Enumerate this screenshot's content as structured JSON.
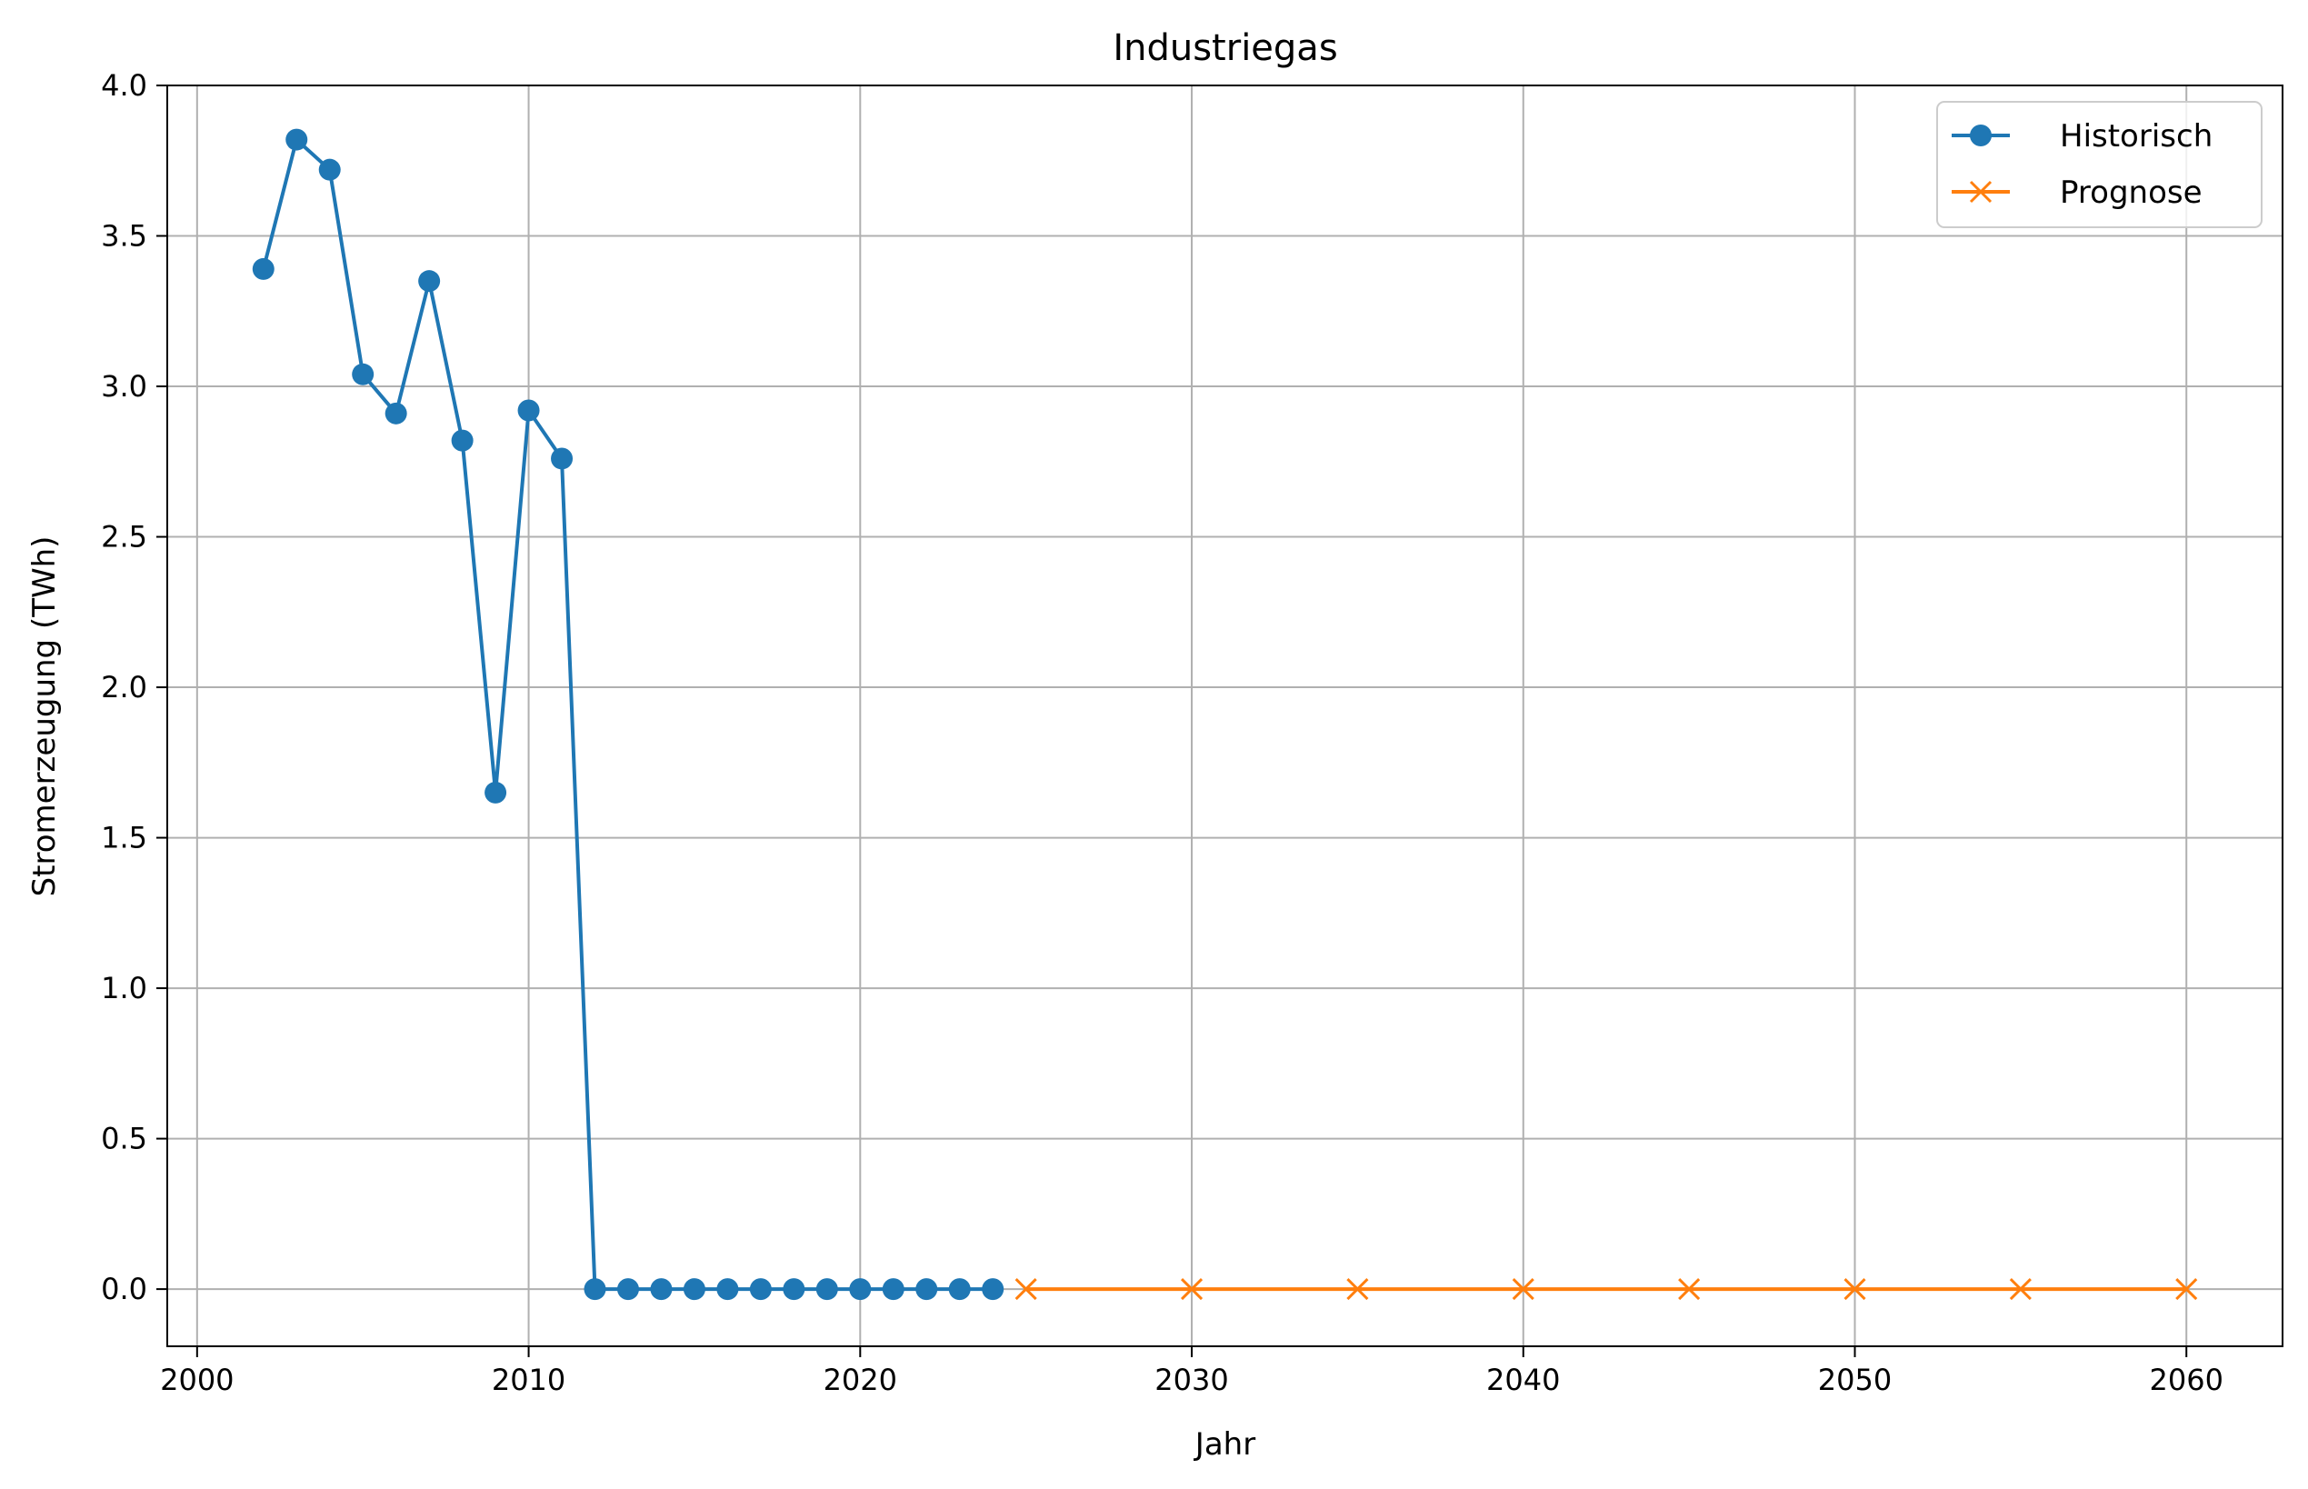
{
  "chart_data": {
    "type": "line",
    "title": "Industriegas",
    "xlabel": "Jahr",
    "ylabel": "Stromerzeugung (TWh)",
    "xlim": [
      1999.1,
      2062.9
    ],
    "ylim": [
      -0.19,
      4.0
    ],
    "x_ticks": [
      2000,
      2010,
      2020,
      2030,
      2040,
      2050,
      2060
    ],
    "x_tick_labels": [
      "2000",
      "2010",
      "2020",
      "2030",
      "2040",
      "2050",
      "2060"
    ],
    "y_ticks": [
      0.0,
      0.5,
      1.0,
      1.5,
      2.0,
      2.5,
      3.0,
      3.5,
      4.0
    ],
    "y_tick_labels": [
      "0.0",
      "0.5",
      "1.0",
      "1.5",
      "2.0",
      "2.5",
      "3.0",
      "3.5",
      "4.0"
    ],
    "grid": true,
    "legend_position": "top-right",
    "series": [
      {
        "name": "Historisch",
        "color": "#1f77b4",
        "marker": "circle",
        "x": [
          2002,
          2003,
          2004,
          2005,
          2006,
          2007,
          2008,
          2009,
          2010,
          2011,
          2012,
          2013,
          2014,
          2015,
          2016,
          2017,
          2018,
          2019,
          2020,
          2021,
          2022,
          2023,
          2024
        ],
        "values": [
          3.39,
          3.82,
          3.72,
          3.04,
          2.91,
          3.35,
          2.82,
          1.65,
          2.92,
          2.76,
          0.0,
          0.0,
          0.0,
          0.0,
          0.0,
          0.0,
          0.0,
          0.0,
          0.0,
          0.0,
          0.0,
          0.0,
          0.0
        ]
      },
      {
        "name": "Prognose",
        "color": "#ff7f0e",
        "marker": "x",
        "x": [
          2025,
          2030,
          2035,
          2040,
          2045,
          2050,
          2055,
          2060
        ],
        "values": [
          0.0,
          0.0,
          0.0,
          0.0,
          0.0,
          0.0,
          0.0,
          0.0
        ]
      }
    ]
  }
}
